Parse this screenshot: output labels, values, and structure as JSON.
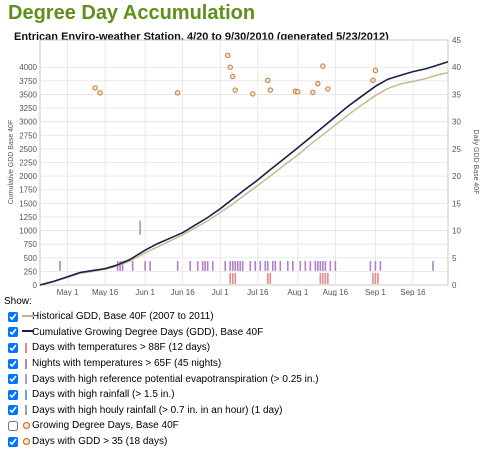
{
  "page_title": "Degree Day Accumulation",
  "legend_title": "Show:",
  "legend_items": [
    {
      "label": "Historical GDD, Base 40F (2007 to 2011)",
      "checked": true,
      "swatch": "line",
      "color": "#c8b48a"
    },
    {
      "label": "Cumulative Growing Degree Days (GDD), Base 40F",
      "checked": true,
      "swatch": "line",
      "color": "#1a1d4a"
    },
    {
      "label": "Days with temperatures > 88F (12 days)",
      "checked": true,
      "swatch": "bar",
      "color": "#e08a8a"
    },
    {
      "label": "Nights with temperatures > 65F (45 nights)",
      "checked": true,
      "swatch": "bar",
      "color": "#b080c8"
    },
    {
      "label": "Days with high reference potential evapotranspiration (> 0.25 in.)",
      "checked": true,
      "swatch": "bar",
      "color": "#9aa0d8"
    },
    {
      "label": "Days with high rainfall (> 1.5 in.)",
      "checked": true,
      "swatch": "bar",
      "color": "#6fa0d0"
    },
    {
      "label": "Days with high houly rainfall (> 0.7 in. in an hour) (1 day)",
      "checked": true,
      "swatch": "bar",
      "color": "#a0a0a0"
    },
    {
      "label": "Growing Degree Days, Base 40F",
      "checked": false,
      "swatch": "dot",
      "color": "#c9762a"
    },
    {
      "label": "Days with GDD > 35 (18 days)",
      "checked": true,
      "swatch": "dot",
      "color": "#c9762a"
    }
  ],
  "chart_data": {
    "type": "line",
    "title": "Entrican Enviro-weather Station, 4/20 to 9/30/2010 (generated 5/23/2012)",
    "ylabel": "Cumulative GDD Base 40F",
    "y2label": "Daily GDD Base 40F",
    "ylim": [
      0,
      4500
    ],
    "y2lim": [
      0,
      45
    ],
    "x_domain": [
      "2010-04-20",
      "2010-09-30"
    ],
    "x_ticks": [
      {
        "label": "May 1",
        "date": "2010-05-01"
      },
      {
        "label": "May 16",
        "date": "2010-05-16"
      },
      {
        "label": "Jun 1",
        "date": "2010-06-01"
      },
      {
        "label": "Jun 16",
        "date": "2010-06-16"
      },
      {
        "label": "Jul 1",
        "date": "2010-07-01"
      },
      {
        "label": "Jul 16",
        "date": "2010-07-16"
      },
      {
        "label": "Aug 1",
        "date": "2010-08-01"
      },
      {
        "label": "Aug 16",
        "date": "2010-08-16"
      },
      {
        "label": "Sep 1",
        "date": "2010-09-01"
      },
      {
        "label": "Sep 16",
        "date": "2010-09-16"
      }
    ],
    "y_ticks": [
      0,
      250,
      500,
      750,
      1000,
      1250,
      1500,
      1750,
      2000,
      2250,
      2500,
      2750,
      3000,
      3250,
      3500,
      3750,
      4000
    ],
    "y2_ticks": [
      0,
      5,
      10,
      15,
      20,
      25,
      30,
      35,
      40,
      45
    ],
    "grid": true,
    "series": [
      {
        "name": "Cumulative Growing Degree Days (GDD), Base 40F",
        "color": "#1a1d4a",
        "points": [
          [
            "2010-04-20",
            0
          ],
          [
            "2010-04-25",
            60
          ],
          [
            "2010-05-01",
            150
          ],
          [
            "2010-05-06",
            230
          ],
          [
            "2010-05-11",
            265
          ],
          [
            "2010-05-16",
            300
          ],
          [
            "2010-05-21",
            370
          ],
          [
            "2010-05-26",
            470
          ],
          [
            "2010-06-01",
            640
          ],
          [
            "2010-06-06",
            760
          ],
          [
            "2010-06-11",
            860
          ],
          [
            "2010-06-16",
            960
          ],
          [
            "2010-06-21",
            1100
          ],
          [
            "2010-06-26",
            1240
          ],
          [
            "2010-07-01",
            1400
          ],
          [
            "2010-07-06",
            1580
          ],
          [
            "2010-07-11",
            1760
          ],
          [
            "2010-07-16",
            1930
          ],
          [
            "2010-07-21",
            2120
          ],
          [
            "2010-07-26",
            2300
          ],
          [
            "2010-08-01",
            2520
          ],
          [
            "2010-08-06",
            2710
          ],
          [
            "2010-08-11",
            2900
          ],
          [
            "2010-08-16",
            3090
          ],
          [
            "2010-08-21",
            3280
          ],
          [
            "2010-08-26",
            3450
          ],
          [
            "2010-09-01",
            3650
          ],
          [
            "2010-09-06",
            3780
          ],
          [
            "2010-09-11",
            3850
          ],
          [
            "2010-09-16",
            3920
          ],
          [
            "2010-09-21",
            3970
          ],
          [
            "2010-09-26",
            4040
          ],
          [
            "2010-09-30",
            4100
          ]
        ]
      },
      {
        "name": "Historical GDD, Base 40F (2007 to 2011)",
        "color": "#c8b48a",
        "points": [
          [
            "2010-04-20",
            0
          ],
          [
            "2010-04-25",
            55
          ],
          [
            "2010-05-01",
            140
          ],
          [
            "2010-05-06",
            215
          ],
          [
            "2010-05-11",
            250
          ],
          [
            "2010-05-16",
            290
          ],
          [
            "2010-05-21",
            350
          ],
          [
            "2010-05-26",
            440
          ],
          [
            "2010-06-01",
            590
          ],
          [
            "2010-06-06",
            700
          ],
          [
            "2010-06-11",
            810
          ],
          [
            "2010-06-16",
            920
          ],
          [
            "2010-06-21",
            1050
          ],
          [
            "2010-06-26",
            1180
          ],
          [
            "2010-07-01",
            1330
          ],
          [
            "2010-07-06",
            1490
          ],
          [
            "2010-07-11",
            1660
          ],
          [
            "2010-07-16",
            1830
          ],
          [
            "2010-07-21",
            2000
          ],
          [
            "2010-07-26",
            2180
          ],
          [
            "2010-08-01",
            2390
          ],
          [
            "2010-08-06",
            2580
          ],
          [
            "2010-08-11",
            2760
          ],
          [
            "2010-08-16",
            2940
          ],
          [
            "2010-08-21",
            3120
          ],
          [
            "2010-08-26",
            3290
          ],
          [
            "2010-09-01",
            3480
          ],
          [
            "2010-09-06",
            3610
          ],
          [
            "2010-09-11",
            3690
          ],
          [
            "2010-09-16",
            3740
          ],
          [
            "2010-09-21",
            3790
          ],
          [
            "2010-09-26",
            3860
          ],
          [
            "2010-09-30",
            3900
          ]
        ]
      }
    ],
    "daily_gdd_over_35": {
      "name": "Days with GDD > 35 (18 days)",
      "color": "#c9762a",
      "points": [
        [
          "2010-05-12",
          36.2
        ],
        [
          "2010-05-14",
          35.3
        ],
        [
          "2010-06-14",
          35.3
        ],
        [
          "2010-07-04",
          42.2
        ],
        [
          "2010-07-05",
          40.0
        ],
        [
          "2010-07-06",
          38.3
        ],
        [
          "2010-07-07",
          35.8
        ],
        [
          "2010-07-14",
          35.1
        ],
        [
          "2010-07-20",
          37.6
        ],
        [
          "2010-07-21",
          35.8
        ],
        [
          "2010-07-31",
          35.6
        ],
        [
          "2010-08-01",
          35.5
        ],
        [
          "2010-08-07",
          35.4
        ],
        [
          "2010-08-09",
          37.0
        ],
        [
          "2010-08-11",
          40.2
        ],
        [
          "2010-08-13",
          36.0
        ],
        [
          "2010-08-31",
          37.6
        ],
        [
          "2010-09-01",
          39.4
        ]
      ]
    },
    "event_bars": [
      {
        "name": "Nights with temperatures > 65F (45 nights)",
        "color": "#b080c8",
        "dates": [
          "2010-04-28",
          "2010-05-21",
          "2010-05-22",
          "2010-05-23",
          "2010-05-27",
          "2010-06-01",
          "2010-06-03",
          "2010-06-14",
          "2010-06-19",
          "2010-06-22",
          "2010-06-24",
          "2010-06-25",
          "2010-06-26",
          "2010-06-28",
          "2010-07-03",
          "2010-07-05",
          "2010-07-06",
          "2010-07-07",
          "2010-07-08",
          "2010-07-09",
          "2010-07-10",
          "2010-07-13",
          "2010-07-15",
          "2010-07-17",
          "2010-07-19",
          "2010-07-20",
          "2010-07-22",
          "2010-07-23",
          "2010-07-25",
          "2010-07-28",
          "2010-07-30",
          "2010-08-02",
          "2010-08-04",
          "2010-08-06",
          "2010-08-08",
          "2010-08-09",
          "2010-08-10",
          "2010-08-11",
          "2010-08-12",
          "2010-08-14",
          "2010-08-16",
          "2010-08-30",
          "2010-09-01",
          "2010-09-03",
          "2010-09-24"
        ]
      },
      {
        "name": "Days with temperatures > 88F (12 days)",
        "color": "#e08a8a",
        "dates": [
          "2010-07-05",
          "2010-07-06",
          "2010-07-07",
          "2010-07-20",
          "2010-07-21",
          "2010-08-10",
          "2010-08-11",
          "2010-08-12",
          "2010-08-13",
          "2010-08-31",
          "2010-09-01",
          "2010-09-02"
        ]
      },
      {
        "name": "Days with high houly rainfall (> 0.7 in. in an hour) (1 day)",
        "color": "#a0a0a0",
        "dates": [
          "2010-05-30"
        ]
      }
    ]
  }
}
